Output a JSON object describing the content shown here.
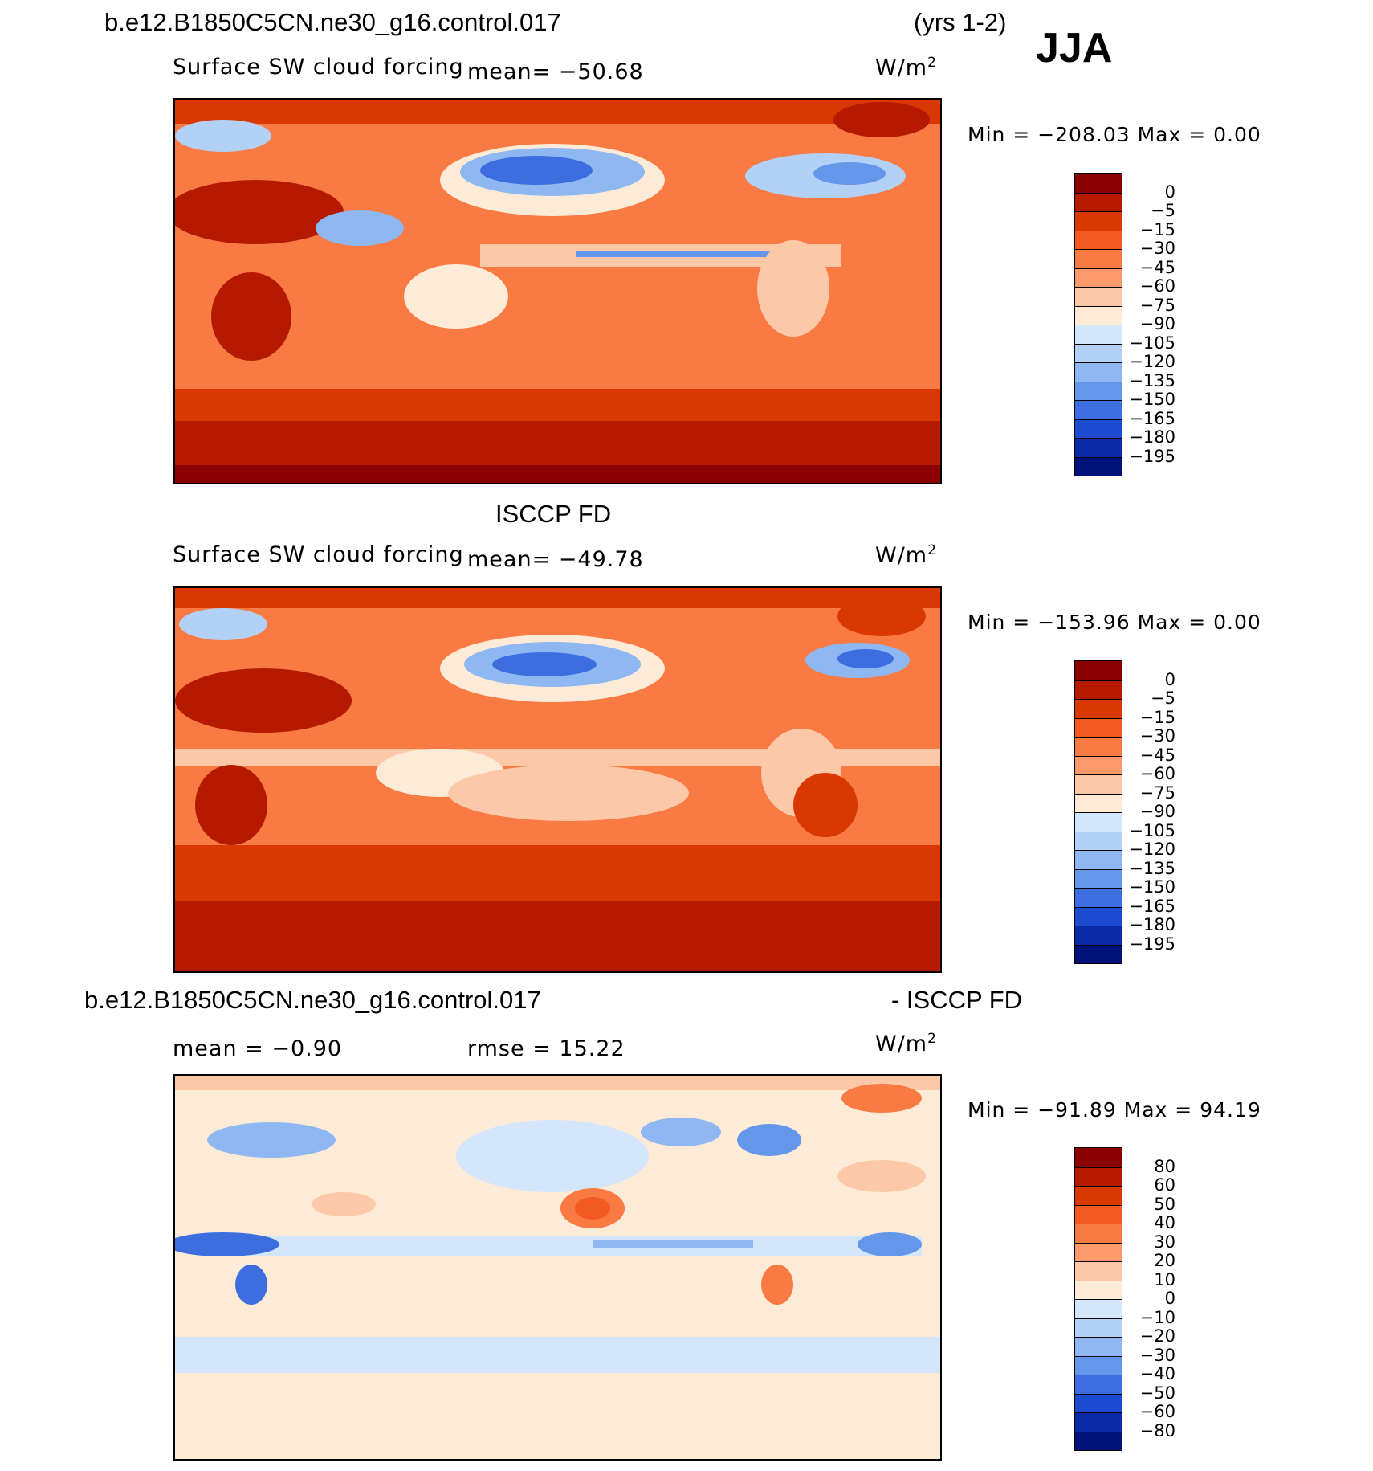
{
  "header": {
    "case_name": "b.e12.B1850C5CN.ne30_g16.control.017",
    "years": "(yrs 1-2)",
    "season": "JJA"
  },
  "panels": [
    {
      "title": "",
      "variable": "Surface SW cloud forcing",
      "mean_text": "mean= −50.68",
      "units": "W/m",
      "units_sup": "2",
      "minmax": "Min = −208.03 Max =   0.00",
      "levels": [
        "0",
        "−5",
        "−15",
        "−30",
        "−45",
        "−60",
        "−75",
        "−90",
        "−105",
        "−120",
        "−135",
        "−150",
        "−165",
        "−180",
        "−195"
      ],
      "colors": [
        "#8b0000",
        "#b51a00",
        "#d93800",
        "#f25a20",
        "#f97a42",
        "#fc9a6b",
        "#fdc8a8",
        "#fdebd8",
        "#d4e6fb",
        "#b3d1f7",
        "#8fb8f2",
        "#6496ea",
        "#3d6ee0",
        "#1c4bd2",
        "#0a2aa8",
        "#00127a"
      ]
    },
    {
      "title": "ISCCP FD",
      "variable": "Surface SW cloud forcing",
      "mean_text": "mean= −49.78",
      "units": "W/m",
      "units_sup": "2",
      "minmax": "Min = −153.96 Max =   0.00",
      "levels": [
        "0",
        "−5",
        "−15",
        "−30",
        "−45",
        "−60",
        "−75",
        "−90",
        "−105",
        "−120",
        "−135",
        "−150",
        "−165",
        "−180",
        "−195"
      ],
      "colors": [
        "#8b0000",
        "#b51a00",
        "#d93800",
        "#f25a20",
        "#f97a42",
        "#fc9a6b",
        "#fdc8a8",
        "#fdebd8",
        "#d4e6fb",
        "#b3d1f7",
        "#8fb8f2",
        "#6496ea",
        "#3d6ee0",
        "#1c4bd2",
        "#0a2aa8",
        "#00127a"
      ]
    },
    {
      "title_left": "b.e12.B1850C5CN.ne30_g16.control.017",
      "title_right": "- ISCCP FD",
      "mean_text": "mean =   −0.90",
      "rmse_text": "rmse =   15.22",
      "units": "W/m",
      "units_sup": "2",
      "minmax": "Min = −91.89 Max =  94.19",
      "levels": [
        "80",
        "60",
        "50",
        "40",
        "30",
        "20",
        "10",
        "0",
        "−10",
        "−20",
        "−30",
        "−40",
        "−50",
        "−60",
        "−80"
      ],
      "colors": [
        "#8b0000",
        "#b51a00",
        "#d93800",
        "#f25a20",
        "#f97a42",
        "#fc9a6b",
        "#fdc8a8",
        "#fdebd8",
        "#d4e6fb",
        "#b3d1f7",
        "#8fb8f2",
        "#6496ea",
        "#3d6ee0",
        "#1c4bd2",
        "#0a2aa8",
        "#00127a"
      ]
    }
  ]
}
